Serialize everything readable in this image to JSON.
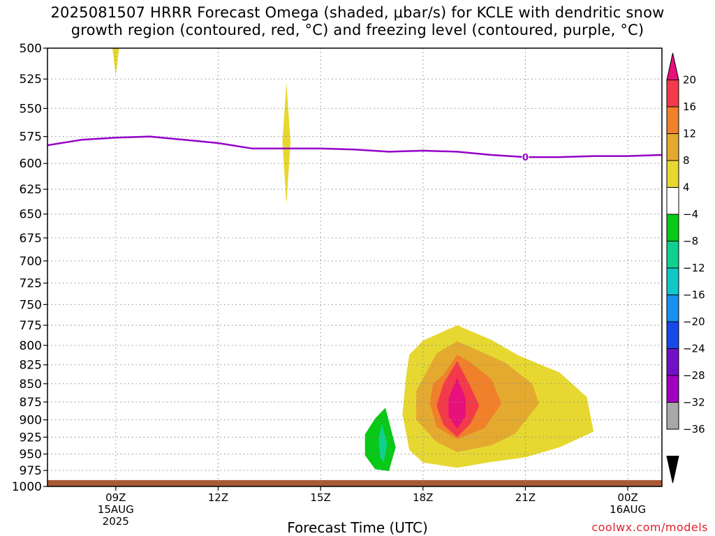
{
  "title": {
    "line1": "2025081507 HRRR Forecast Omega (shaded, μbar/s) for KCLE with dendritic snow",
    "line2": "growth region (contoured, red, °C) and freezing level (contoured, purple, °C)"
  },
  "credit": "coolwx.com/models",
  "chart_data": {
    "type": "heatmap",
    "xlabel": "Forecast Time (UTC)",
    "ylabel": "",
    "xlim": [
      7,
      25
    ],
    "ylim": [
      1000,
      500
    ],
    "y_ticks": [
      500,
      525,
      550,
      575,
      600,
      625,
      650,
      675,
      700,
      725,
      750,
      775,
      800,
      825,
      850,
      875,
      900,
      925,
      950,
      975,
      1000
    ],
    "x_ticks": [
      {
        "hour": 9,
        "label": "09Z",
        "sub1": "15AUG",
        "sub2": "2025"
      },
      {
        "hour": 12,
        "label": "12Z",
        "sub1": "",
        "sub2": ""
      },
      {
        "hour": 15,
        "label": "15Z",
        "sub1": "",
        "sub2": ""
      },
      {
        "hour": 18,
        "label": "18Z",
        "sub1": "",
        "sub2": ""
      },
      {
        "hour": 21,
        "label": "21Z",
        "sub1": "",
        "sub2": ""
      },
      {
        "hour": 24,
        "label": "00Z",
        "sub1": "16AUG",
        "sub2": ""
      }
    ],
    "grid": true,
    "colorbar": {
      "levels": [
        "20",
        "16",
        "12",
        "8",
        "4",
        "−4",
        "−8",
        "−12",
        "−16",
        "−20",
        "−24",
        "−28",
        "−32",
        "−36"
      ],
      "colors": [
        "#e8107a",
        "#f23a4a",
        "#f0802a",
        "#e4aa30",
        "#e6d830",
        "#ffffff",
        "#08c818",
        "#10d090",
        "#10c8c8",
        "#1890f0",
        "#1848e8",
        "#7010c8",
        "#a000c0",
        "#a8a8a8",
        "#000000"
      ]
    },
    "freezing_level": {
      "color": "#9400c8",
      "label": "0",
      "label_at_hour": 21,
      "hours": [
        7,
        8,
        9,
        10,
        11,
        12,
        13,
        14,
        15,
        16,
        17,
        18,
        19,
        20,
        21,
        22,
        23,
        24,
        25
      ],
      "pressure": [
        583,
        578,
        576,
        575,
        578,
        581,
        586,
        586,
        586,
        587,
        589,
        588,
        589,
        592,
        594,
        594,
        593,
        593,
        592
      ]
    },
    "omega_regions": [
      {
        "level": "4 to 8",
        "color": "#e6d830",
        "points": [
          [
            8.9,
            500
          ],
          [
            9.1,
            500
          ],
          [
            9.0,
            522
          ]
        ]
      },
      {
        "level": "4 to 8",
        "color": "#e6d830",
        "points": [
          [
            14.0,
            528
          ],
          [
            14.12,
            580
          ],
          [
            14.0,
            640
          ],
          [
            13.88,
            580
          ]
        ]
      },
      {
        "level": "4 to 8",
        "color": "#e6d830",
        "points": [
          [
            18.0,
            794
          ],
          [
            19.0,
            775
          ],
          [
            20.0,
            793
          ],
          [
            20.8,
            813
          ],
          [
            22.0,
            835
          ],
          [
            22.8,
            868
          ],
          [
            23.0,
            917
          ],
          [
            22.0,
            940
          ],
          [
            21.0,
            955
          ],
          [
            20.0,
            962
          ],
          [
            19.0,
            971
          ],
          [
            18.0,
            963
          ],
          [
            17.6,
            944
          ],
          [
            17.4,
            892
          ],
          [
            17.5,
            842
          ],
          [
            17.6,
            812
          ]
        ]
      },
      {
        "level": "8 to 12",
        "color": "#e4aa30",
        "points": [
          [
            18.4,
            810
          ],
          [
            19.0,
            795
          ],
          [
            19.6,
            806
          ],
          [
            20.4,
            822
          ],
          [
            21.2,
            850
          ],
          [
            21.4,
            877
          ],
          [
            20.7,
            920
          ],
          [
            20.0,
            937
          ],
          [
            19.0,
            947
          ],
          [
            18.4,
            932
          ],
          [
            17.8,
            900
          ],
          [
            17.8,
            860
          ]
        ]
      },
      {
        "level": "12 to 16",
        "color": "#f0802a",
        "points": [
          [
            18.6,
            838
          ],
          [
            19.0,
            812
          ],
          [
            19.4,
            822
          ],
          [
            20.0,
            844
          ],
          [
            20.3,
            877
          ],
          [
            19.8,
            912
          ],
          [
            19.0,
            928
          ],
          [
            18.4,
            910
          ],
          [
            18.2,
            877
          ],
          [
            18.3,
            850
          ]
        ]
      },
      {
        "level": "16 to 20",
        "color": "#f23a4a",
        "points": [
          [
            19.0,
            820
          ],
          [
            19.35,
            850
          ],
          [
            19.65,
            880
          ],
          [
            19.4,
            905
          ],
          [
            19.0,
            925
          ],
          [
            18.6,
            907
          ],
          [
            18.4,
            880
          ],
          [
            18.6,
            850
          ]
        ]
      },
      {
        "level": "> 20",
        "color": "#e8107a",
        "points": [
          [
            19.0,
            842
          ],
          [
            19.25,
            870
          ],
          [
            19.25,
            895
          ],
          [
            19.0,
            913
          ],
          [
            18.75,
            895
          ],
          [
            18.75,
            870
          ]
        ]
      },
      {
        "level": "-8 to -4",
        "color": "#08c818",
        "points": [
          [
            16.9,
            883
          ],
          [
            17.2,
            940
          ],
          [
            17.0,
            976
          ],
          [
            16.6,
            973
          ],
          [
            16.3,
            952
          ],
          [
            16.3,
            921
          ],
          [
            16.6,
            898
          ]
        ]
      },
      {
        "level": "-12 to -8",
        "color": "#10d090",
        "points": [
          [
            16.8,
            906
          ],
          [
            16.95,
            935
          ],
          [
            16.85,
            963
          ],
          [
            16.75,
            955
          ],
          [
            16.7,
            928
          ]
        ]
      }
    ],
    "ground": {
      "color": "#a85a36",
      "pressure_top": 990
    }
  }
}
